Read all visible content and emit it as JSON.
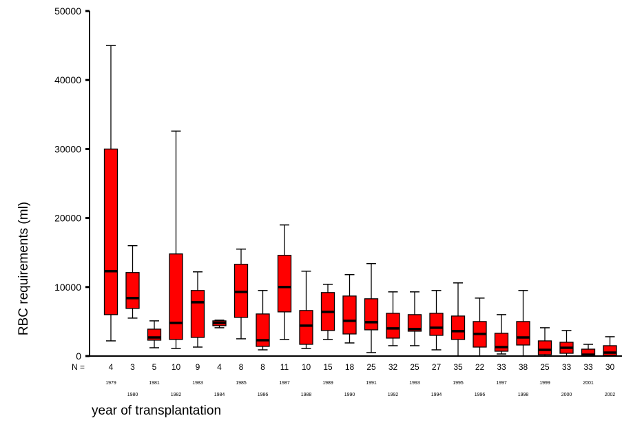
{
  "chart_data": {
    "type": "boxplot",
    "title": "",
    "ylabel": "RBC requirements (ml)",
    "xlabel": "year of transplantation",
    "n_prefix": "N =",
    "ylim": [
      0,
      50000
    ],
    "yticks": [
      0,
      10000,
      20000,
      30000,
      40000,
      50000
    ],
    "ytick_labels": [
      "0",
      "10000",
      "20000",
      "30000",
      "40000",
      "50000"
    ],
    "box_color": "#ff0000",
    "median_color": "#000000",
    "boxes": [
      {
        "year": "1979",
        "n": "4",
        "min": 2200,
        "q1": 6000,
        "median": 12300,
        "q3": 30000,
        "max": 45000
      },
      {
        "year": "1980",
        "n": "3",
        "min": 5500,
        "q1": 6900,
        "median": 8400,
        "q3": 12100,
        "max": 16000
      },
      {
        "year": "1981",
        "n": "5",
        "min": 1200,
        "q1": 2300,
        "median": 2700,
        "q3": 3900,
        "max": 5100
      },
      {
        "year": "1982",
        "n": "10",
        "min": 1100,
        "q1": 2400,
        "median": 4800,
        "q3": 14800,
        "max": 32600
      },
      {
        "year": "1983",
        "n": "9",
        "min": 1300,
        "q1": 2700,
        "median": 7800,
        "q3": 9500,
        "max": 12200
      },
      {
        "year": "1984",
        "n": "4",
        "min": 4100,
        "q1": 4400,
        "median": 4800,
        "q3": 5100,
        "max": 5200
      },
      {
        "year": "1985",
        "n": "8",
        "min": 2500,
        "q1": 5600,
        "median": 9300,
        "q3": 13300,
        "max": 15500
      },
      {
        "year": "1986",
        "n": "8",
        "min": 900,
        "q1": 1400,
        "median": 2300,
        "q3": 6100,
        "max": 9500
      },
      {
        "year": "1987",
        "n": "11",
        "min": 2400,
        "q1": 6400,
        "median": 10000,
        "q3": 14600,
        "max": 19000
      },
      {
        "year": "1988",
        "n": "10",
        "min": 1100,
        "q1": 1700,
        "median": 4400,
        "q3": 6600,
        "max": 12300
      },
      {
        "year": "1989",
        "n": "15",
        "min": 2400,
        "q1": 3700,
        "median": 6400,
        "q3": 9200,
        "max": 10400
      },
      {
        "year": "1990",
        "n": "18",
        "min": 1900,
        "q1": 3200,
        "median": 5100,
        "q3": 8700,
        "max": 11800
      },
      {
        "year": "1991",
        "n": "25",
        "min": 500,
        "q1": 3800,
        "median": 4900,
        "q3": 8300,
        "max": 13400
      },
      {
        "year": "1992",
        "n": "32",
        "min": 1500,
        "q1": 2600,
        "median": 4000,
        "q3": 6200,
        "max": 9300
      },
      {
        "year": "1993",
        "n": "25",
        "min": 1500,
        "q1": 3600,
        "median": 3900,
        "q3": 6000,
        "max": 9300
      },
      {
        "year": "1994",
        "n": "27",
        "min": 900,
        "q1": 3000,
        "median": 4100,
        "q3": 6200,
        "max": 9500
      },
      {
        "year": "1995",
        "n": "35",
        "min": 0,
        "q1": 2400,
        "median": 3600,
        "q3": 5800,
        "max": 10600
      },
      {
        "year": "1996",
        "n": "22",
        "min": 0,
        "q1": 1300,
        "median": 3200,
        "q3": 5000,
        "max": 8400
      },
      {
        "year": "1997",
        "n": "33",
        "min": 300,
        "q1": 700,
        "median": 1300,
        "q3": 3300,
        "max": 6000
      },
      {
        "year": "1998",
        "n": "38",
        "min": 0,
        "q1": 1600,
        "median": 2700,
        "q3": 5000,
        "max": 9500
      },
      {
        "year": "1999",
        "n": "25",
        "min": 0,
        "q1": 200,
        "median": 900,
        "q3": 2200,
        "max": 4100
      },
      {
        "year": "2000",
        "n": "33",
        "min": 0,
        "q1": 400,
        "median": 1200,
        "q3": 2000,
        "max": 3700
      },
      {
        "year": "2001",
        "n": "33",
        "min": 0,
        "q1": 0,
        "median": 200,
        "q3": 1000,
        "max": 1700
      },
      {
        "year": "2002",
        "n": "30",
        "min": 0,
        "q1": 100,
        "median": 500,
        "q3": 1500,
        "max": 2800
      }
    ]
  }
}
